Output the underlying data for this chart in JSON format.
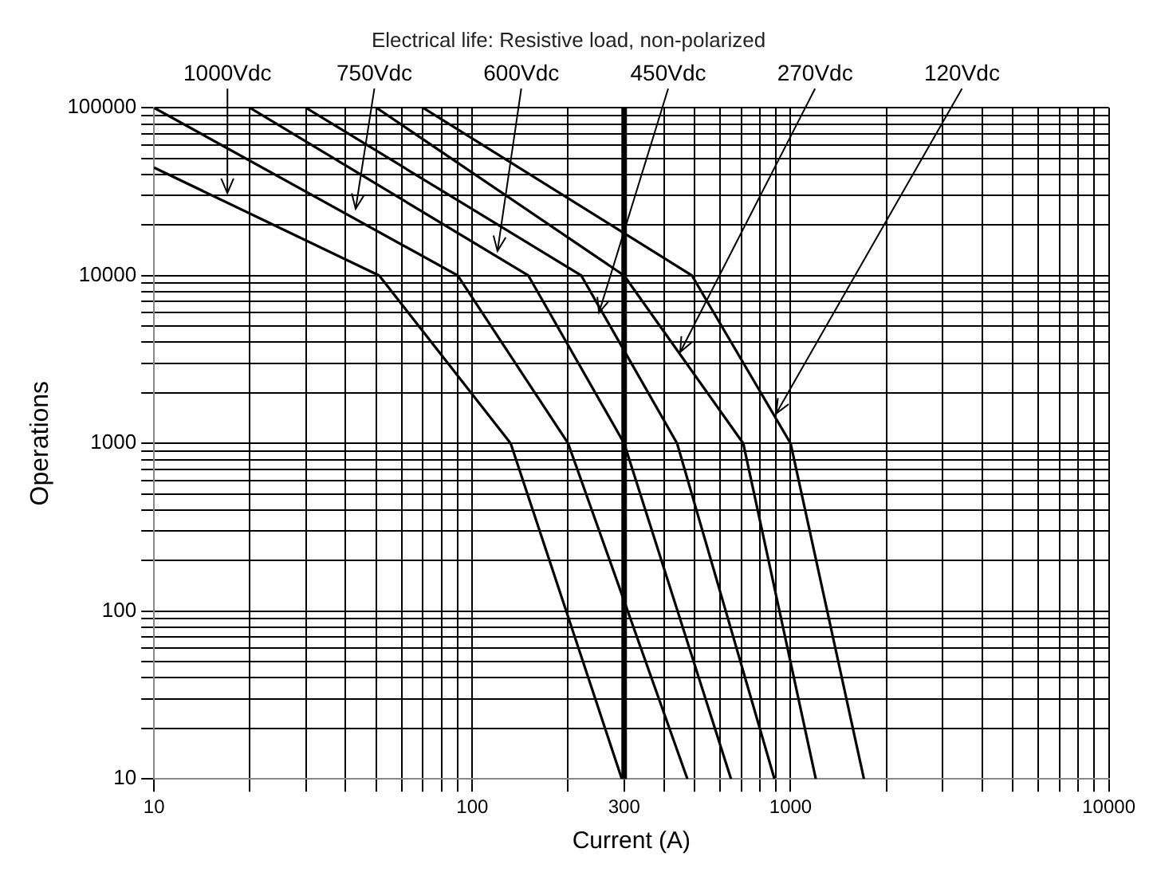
{
  "chart_data": {
    "type": "line",
    "title": "Electrical life: Resistive load, non-polarized",
    "xlabel": "Current (A)",
    "ylabel": "Operations",
    "log": "xy",
    "grid": true,
    "marker": "none",
    "line_style": "solid",
    "legend": false,
    "xlim": [
      10,
      10000
    ],
    "ylim": [
      10,
      100000
    ],
    "xticks": [
      10,
      {
        "value": 20,
        "label": null
      },
      {
        "value": 30,
        "label": null
      },
      {
        "value": 40,
        "label": null
      },
      {
        "value": 50,
        "label": null
      },
      {
        "value": 60,
        "label": null
      },
      {
        "value": 70,
        "label": null
      },
      {
        "value": 80,
        "label": null
      },
      {
        "value": 90,
        "label": null
      },
      100,
      {
        "value": 200,
        "label": null
      },
      300,
      {
        "value": 400,
        "label": null
      },
      {
        "value": 500,
        "label": null
      },
      {
        "value": 600,
        "label": null
      },
      {
        "value": 700,
        "label": null
      },
      {
        "value": 800,
        "label": null
      },
      {
        "value": 900,
        "label": null
      },
      1000,
      {
        "value": 2000,
        "label": null
      },
      {
        "value": 3000,
        "label": null
      },
      {
        "value": 4000,
        "label": null
      },
      {
        "value": 5000,
        "label": null
      },
      {
        "value": 6000,
        "label": null
      },
      {
        "value": 7000,
        "label": null
      },
      {
        "value": 8000,
        "label": null
      },
      {
        "value": 9000,
        "label": null
      },
      10000
    ],
    "yticks": [
      10,
      {
        "value": 20,
        "label": null
      },
      {
        "value": 30,
        "label": null
      },
      {
        "value": 40,
        "label": null
      },
      {
        "value": 50,
        "label": null
      },
      {
        "value": 60,
        "label": null
      },
      {
        "value": 70,
        "label": null
      },
      {
        "value": 80,
        "label": null
      },
      {
        "value": 90,
        "label": null
      },
      100,
      {
        "value": 200,
        "label": null
      },
      {
        "value": 300,
        "label": null
      },
      {
        "value": 400,
        "label": null
      },
      {
        "value": 500,
        "label": null
      },
      {
        "value": 600,
        "label": null
      },
      {
        "value": 700,
        "label": null
      },
      {
        "value": 800,
        "label": null
      },
      {
        "value": 900,
        "label": null
      },
      1000,
      {
        "value": 2000,
        "label": null
      },
      {
        "value": 3000,
        "label": null
      },
      {
        "value": 4000,
        "label": null
      },
      {
        "value": 5000,
        "label": null
      },
      {
        "value": 6000,
        "label": null
      },
      {
        "value": 7000,
        "label": null
      },
      {
        "value": 8000,
        "label": null
      },
      {
        "value": 9000,
        "label": null
      },
      10000,
      {
        "value": 20000,
        "label": null
      },
      {
        "value": 30000,
        "label": null
      },
      {
        "value": 40000,
        "label": null
      },
      {
        "value": 50000,
        "label": null
      },
      {
        "value": 60000,
        "label": null
      },
      {
        "value": 70000,
        "label": null
      },
      {
        "value": 80000,
        "label": null
      },
      {
        "value": 90000,
        "label": null
      },
      100000
    ],
    "series": [
      {
        "color": "#000000",
        "x": [
          10,
          51,
          132,
          295
        ],
        "values": [
          44000,
          10000,
          1000,
          10
        ]
      },
      {
        "color": "#000000",
        "x": [
          10,
          90,
          200,
          474
        ],
        "values": [
          100000,
          10000,
          1000,
          10
        ]
      },
      {
        "color": "#000000",
        "x": [
          20,
          150,
          300,
          650
        ],
        "values": [
          100000,
          10000,
          1000,
          10
        ]
      },
      {
        "color": "#000000",
        "x": [
          30,
          220,
          440,
          890
        ],
        "values": [
          100000,
          10000,
          1000,
          10
        ]
      },
      {
        "color": "#000000",
        "x": [
          50,
          300,
          710,
          1200
        ],
        "values": [
          100000,
          10000,
          1000,
          10
        ]
      },
      {
        "color": "#000000",
        "x": [
          70,
          490,
          1000,
          1700
        ],
        "values": [
          100000,
          10000,
          1000,
          10
        ]
      }
    ],
    "ref_lines": [
      {
        "axis": "x",
        "value": 300,
        "color": "#000000"
      }
    ],
    "annotations": [
      {
        "text": "1000Vdc",
        "x": 17,
        "y": 31000
      },
      {
        "text": "750Vdc",
        "x": 43,
        "y": 25000
      },
      {
        "text": "600Vdc",
        "x": 120,
        "y": 14000
      },
      {
        "text": "450Vdc",
        "x": 250,
        "y": 6000
      },
      {
        "text": "270Vdc",
        "x": 450,
        "y": 3500
      },
      {
        "text": "120Vdc",
        "x": 900,
        "y": 1500
      }
    ]
  }
}
